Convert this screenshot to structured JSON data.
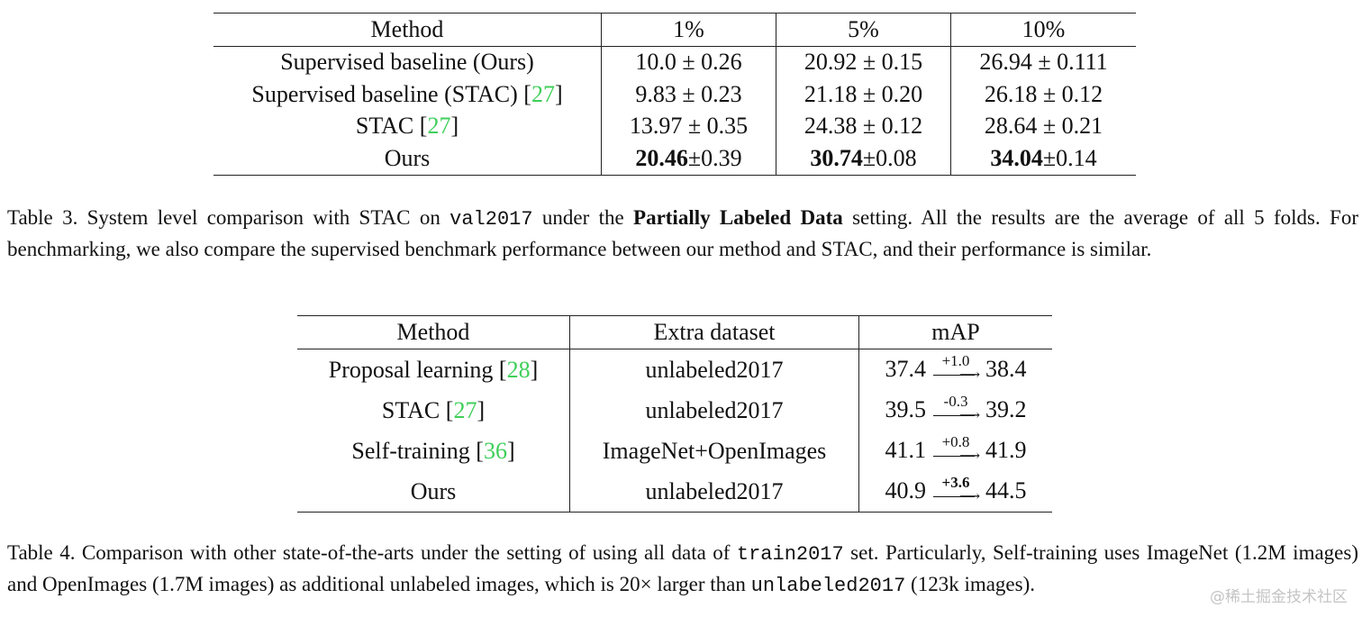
{
  "table3": {
    "headers": [
      "Method",
      "1%",
      "5%",
      "10%"
    ],
    "rows": [
      {
        "method": "Supervised baseline (Ours)",
        "cite": "",
        "v1": "10.0 ± 0.26",
        "v5": "20.92 ± 0.15",
        "v10": "26.94 ± 0.111"
      },
      {
        "method": "Supervised baseline (STAC) [",
        "cite": "27",
        "v1": "9.83 ± 0.23",
        "v5": "21.18 ± 0.20",
        "v10": "26.18 ± 0.12"
      },
      {
        "method": "STAC [",
        "cite": "27",
        "v1": "13.97 ± 0.35",
        "v5": "24.38 ± 0.12",
        "v10": "28.64 ± 0.21"
      }
    ],
    "ours": {
      "method": "Ours",
      "v1_bold": "20.46",
      "v1_rest": "±0.39",
      "v5_bold": "30.74",
      "v5_rest": "±0.08",
      "v10_bold": "34.04",
      "v10_rest": "±0.14"
    }
  },
  "caption3": {
    "p1": "Table 3. System level comparison with STAC on ",
    "code": "val2017",
    "p2": " under the ",
    "bold": "Partially Labeled Data",
    "p3": " setting. All the results are the average of all 5 folds. For benchmarking, we also compare the supervised benchmark performance between our method and STAC, and their performance is similar."
  },
  "table4": {
    "headers": [
      "Method",
      "Extra dataset",
      "mAP"
    ],
    "rows": [
      {
        "method": "Proposal learning [",
        "cite": "28",
        "extra": "unlabeled2017",
        "from": "37.4",
        "delta": "+1.0",
        "to": "38.4"
      },
      {
        "method": "STAC [",
        "cite": "27",
        "extra": "unlabeled2017",
        "from": "39.5",
        "delta": "-0.3",
        "to": "39.2"
      },
      {
        "method": "Self-training [",
        "cite": "36",
        "extra": "ImageNet+OpenImages",
        "from": "41.1",
        "delta": "+0.8",
        "to": "41.9"
      },
      {
        "method": "Ours",
        "cite": "",
        "extra": "unlabeled2017",
        "from": "40.9",
        "delta": "+3.6",
        "to": "44.5"
      }
    ]
  },
  "caption4": {
    "p1": "Table 4. Comparison with other state-of-the-arts under the setting of using all data of ",
    "code1": "train2017",
    "p2": " set. Particularly, Self-training uses ImageNet (1.2M images) and OpenImages (1.7M images) as additional unlabeled images, which is 20× larger than ",
    "code2": "unlabeled2017",
    "p3": " (123k images)."
  },
  "watermark": "@稀土掘金技术社区"
}
